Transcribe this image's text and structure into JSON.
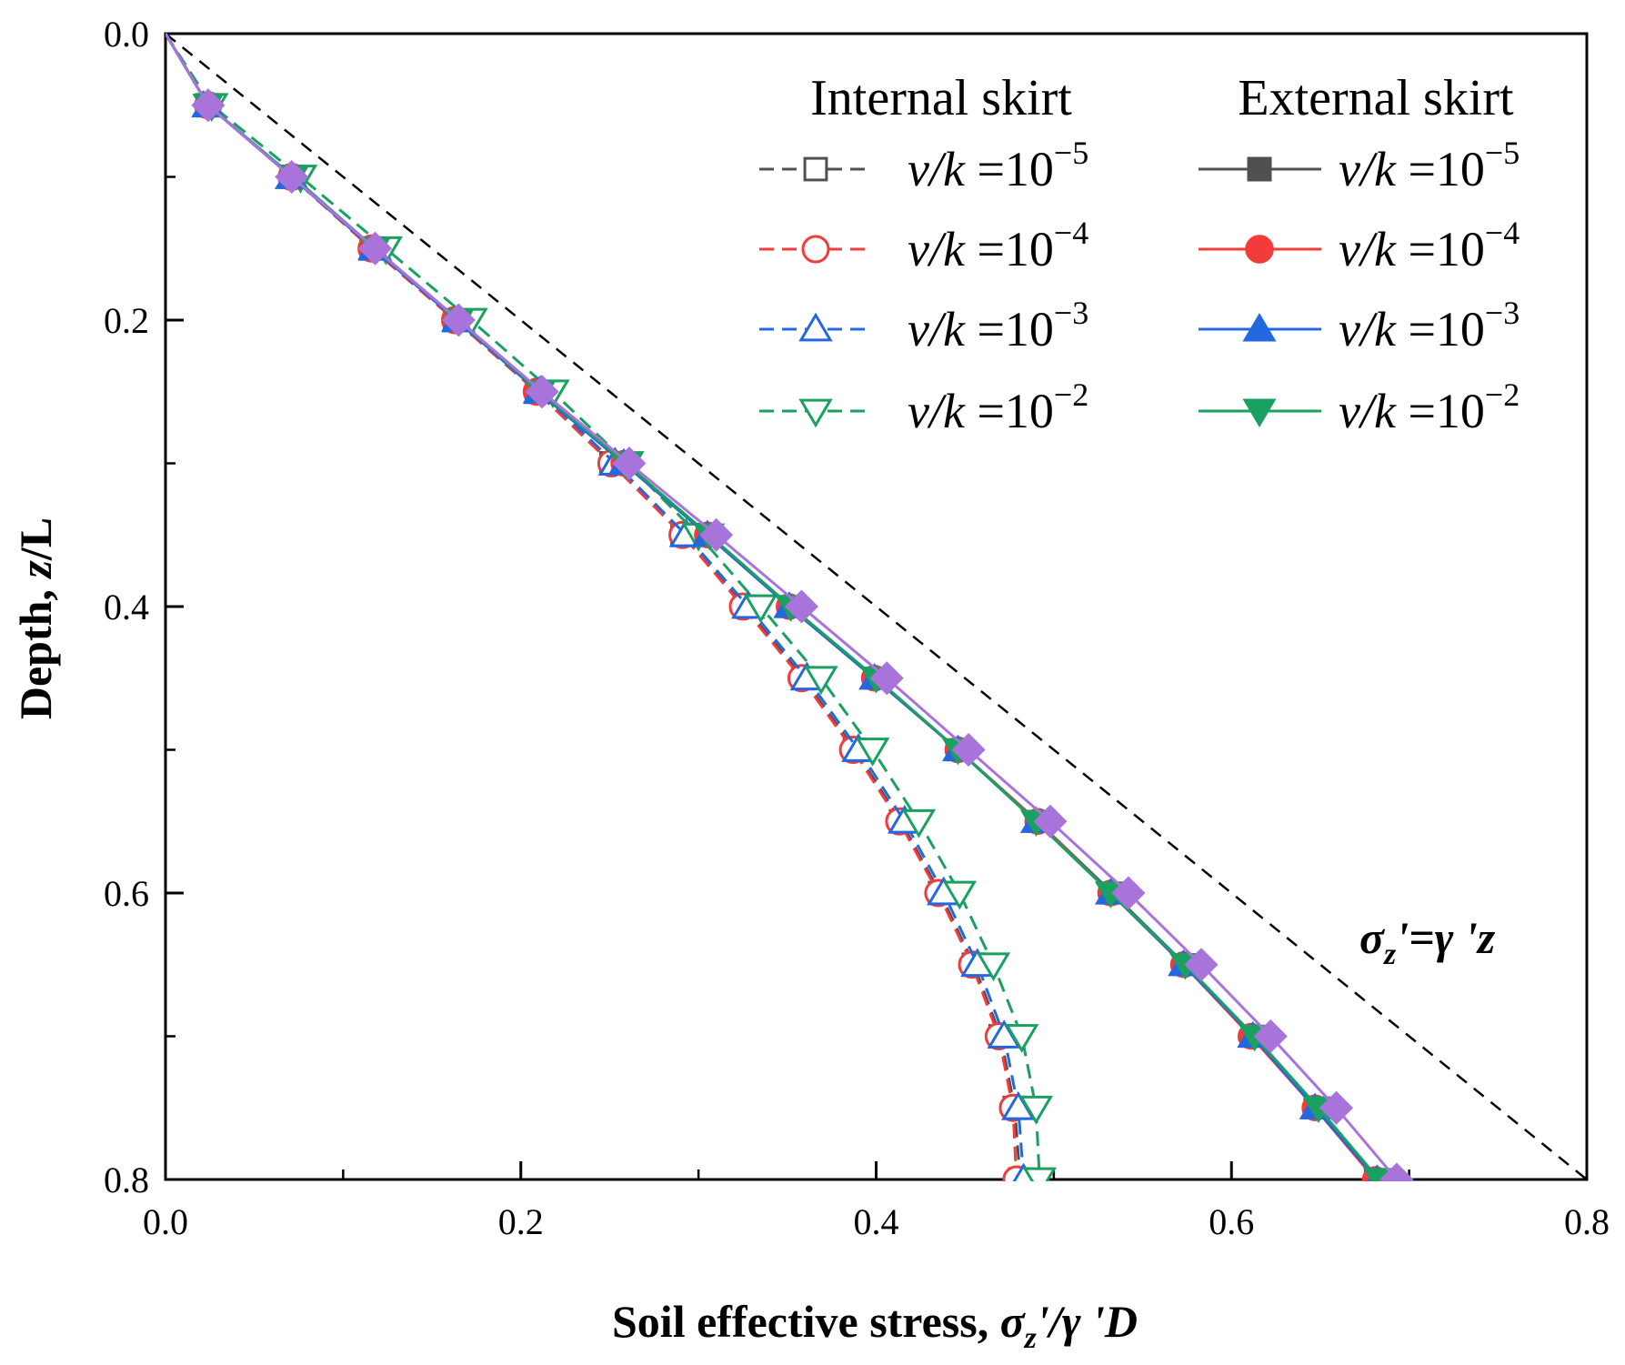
{
  "chart_data": {
    "type": "line",
    "xlabel": {
      "prefix": "Soil effective stress, ",
      "sym": "σ",
      "sub": "z",
      "rest": "'/γ 'D"
    },
    "ylabel": {
      "prefix": "Depth, ",
      "italic": "z",
      "rest": "/L"
    },
    "xlim": [
      0.0,
      0.8
    ],
    "ylim": [
      0.0,
      0.8
    ],
    "y_inverted": true,
    "x_ticks": [
      "0.0",
      "0.2",
      "0.4",
      "0.6",
      "0.8"
    ],
    "y_ticks": [
      "0.0",
      "0.2",
      "0.4",
      "0.6",
      "0.8"
    ],
    "x_tick_values": [
      0.0,
      0.2,
      0.4,
      0.6,
      0.8
    ],
    "y_tick_values": [
      0.0,
      0.2,
      0.4,
      0.6,
      0.8
    ],
    "legend": {
      "internal_title": "Internal skirt",
      "external_title": "External skirt",
      "label_var": "v/k",
      "label_eq": "=10",
      "exponents": [
        "−5",
        "−4",
        "−3",
        "−2"
      ],
      "placement": "top-right"
    },
    "annotation": {
      "sym": "σ",
      "sub": "z",
      "rest": "'=γ 'z"
    },
    "reference_line": {
      "name": "σz'=γ'z",
      "x": [
        0.0,
        0.8
      ],
      "y": [
        0.0,
        0.8
      ],
      "color": "#000000"
    },
    "depths": [
      0.0,
      0.05,
      0.1,
      0.15,
      0.2,
      0.25,
      0.3,
      0.35,
      0.4,
      0.45,
      0.5,
      0.55,
      0.6,
      0.65,
      0.7,
      0.75,
      0.8
    ],
    "internal_series": [
      {
        "name": "Internal v/k=10^-5",
        "color": "#505050",
        "marker": "square-open",
        "x": [
          0.0,
          0.024,
          0.071,
          0.116,
          0.163,
          0.209,
          0.251,
          0.291,
          0.326,
          0.359,
          0.388,
          0.414,
          0.436,
          0.455,
          0.47,
          0.478,
          0.481
        ]
      },
      {
        "name": "Internal v/k=10^-4",
        "color": "#f23b3b",
        "marker": "circle-open",
        "x": [
          0.0,
          0.024,
          0.071,
          0.116,
          0.163,
          0.209,
          0.251,
          0.291,
          0.325,
          0.358,
          0.387,
          0.413,
          0.435,
          0.454,
          0.469,
          0.477,
          0.479
        ]
      },
      {
        "name": "Internal v/k=10^-3",
        "color": "#2468e0",
        "marker": "triangle-up-open",
        "x": [
          0.0,
          0.024,
          0.071,
          0.118,
          0.165,
          0.211,
          0.253,
          0.293,
          0.328,
          0.361,
          0.39,
          0.416,
          0.438,
          0.457,
          0.472,
          0.48,
          0.483
        ]
      },
      {
        "name": "Internal v/k=10^-2",
        "color": "#1aa060",
        "marker": "triangle-down-open",
        "x": [
          0.0,
          0.026,
          0.076,
          0.124,
          0.172,
          0.218,
          0.26,
          0.3,
          0.335,
          0.369,
          0.398,
          0.424,
          0.447,
          0.466,
          0.482,
          0.49,
          0.492
        ]
      }
    ],
    "external_series": [
      {
        "name": "External v/k=10^-5",
        "color": "#505050",
        "marker": "square-filled",
        "x": [
          0.0,
          0.024,
          0.071,
          0.117,
          0.164,
          0.21,
          0.258,
          0.305,
          0.351,
          0.399,
          0.446,
          0.491,
          0.533,
          0.574,
          0.612,
          0.647,
          0.681
        ]
      },
      {
        "name": "External v/k=10^-4",
        "color": "#f23b3b",
        "marker": "circle-filled",
        "x": [
          0.0,
          0.024,
          0.071,
          0.117,
          0.164,
          0.21,
          0.258,
          0.305,
          0.351,
          0.399,
          0.446,
          0.491,
          0.532,
          0.573,
          0.611,
          0.647,
          0.681
        ]
      },
      {
        "name": "External v/k=10^-3",
        "color": "#2468e0",
        "marker": "triangle-up-filled",
        "x": [
          0.0,
          0.024,
          0.071,
          0.117,
          0.164,
          0.21,
          0.258,
          0.305,
          0.351,
          0.399,
          0.446,
          0.49,
          0.532,
          0.573,
          0.612,
          0.647,
          0.682
        ]
      },
      {
        "name": "External v/k=10^-2",
        "color": "#1aa060",
        "marker": "triangle-down-filled",
        "x": [
          0.0,
          0.024,
          0.072,
          0.118,
          0.165,
          0.211,
          0.259,
          0.306,
          0.352,
          0.4,
          0.446,
          0.49,
          0.532,
          0.574,
          0.613,
          0.649,
          0.683
        ]
      },
      {
        "name": "External (purple)",
        "color": "#a874dc",
        "marker": "diamond-filled",
        "x": [
          0.0,
          0.024,
          0.071,
          0.118,
          0.165,
          0.212,
          0.261,
          0.31,
          0.358,
          0.406,
          0.452,
          0.498,
          0.542,
          0.583,
          0.622,
          0.659,
          0.693
        ]
      }
    ]
  }
}
